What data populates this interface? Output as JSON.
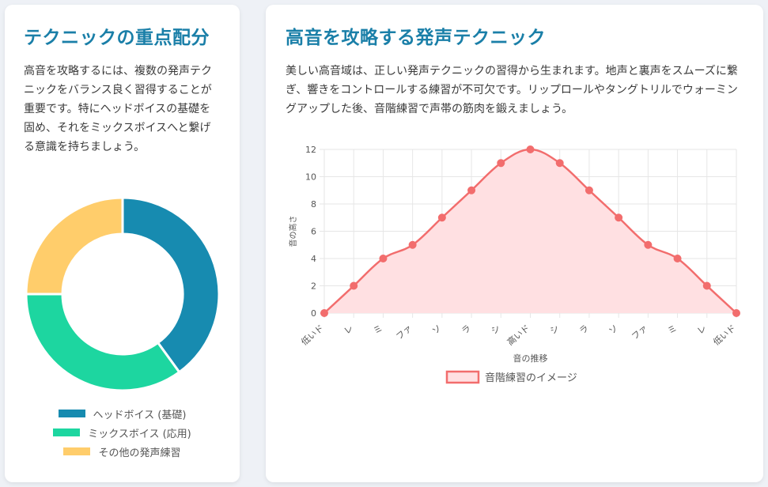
{
  "left_card": {
    "title": "テクニックの重点配分",
    "description": "高音を攻略するには、複数の発声テクニックをバランス良く習得することが重要です。特にヘッドボイスの基礎を固め、それをミックスボイスへと繋げる意識を持ちましょう。"
  },
  "right_card": {
    "title": "高音を攻略する発声テクニック",
    "description": "美しい高音域は、正しい発声テクニックの習得から生まれます。地声と裏声をスムーズに繋ぎ、響きをコントロールする練習が不可欠です。リップロールやタングトリルでウォーミングアップした後、音階練習で声帯の筋肉を鍛えましょう。"
  },
  "chart_data": [
    {
      "type": "pie",
      "variant": "doughnut",
      "categories": [
        "ヘッドボイス (基礎)",
        "ミックスボイス (応用)",
        "その他の発声練習"
      ],
      "values": [
        40,
        35,
        25
      ],
      "colors": [
        "#178bb0",
        "#1dd6a0",
        "#ffcd6b"
      ],
      "legend_position": "bottom"
    },
    {
      "type": "line",
      "categories": [
        "低いド",
        "レ",
        "ミ",
        "ファ",
        "ソ",
        "ラ",
        "シ",
        "高いド",
        "シ",
        "ラ",
        "ソ",
        "ファ",
        "ミ",
        "レ",
        "低いド"
      ],
      "series": [
        {
          "name": "音階練習のイメージ",
          "values": [
            0,
            2,
            4,
            5,
            7,
            9,
            11,
            12,
            11,
            9,
            7,
            5,
            4,
            2,
            0
          ]
        }
      ],
      "xlabel": "音の推移",
      "ylabel": "音の高さ",
      "ylim": [
        0,
        12
      ],
      "yticks": [
        0,
        2,
        4,
        6,
        8,
        10,
        12
      ],
      "grid": true,
      "fill": true,
      "line_color": "#f26d6d",
      "fill_color": "#ffe0e2",
      "legend_position": "bottom"
    }
  ]
}
